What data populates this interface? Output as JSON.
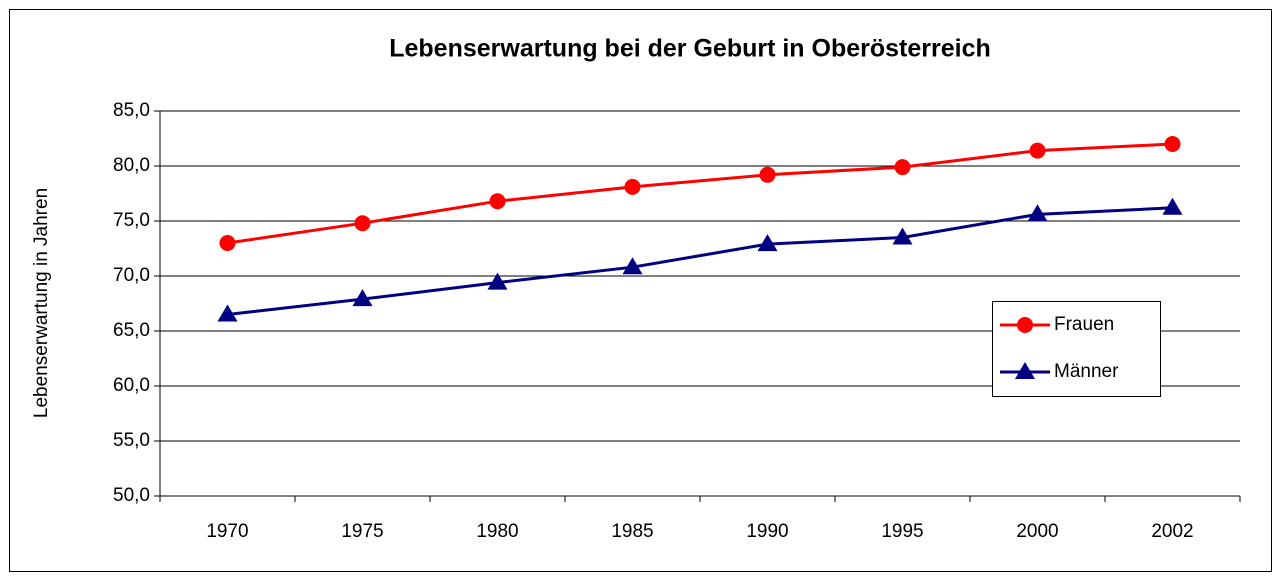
{
  "chart_data": {
    "type": "line",
    "title": "Lebenserwartung bei der Geburt in Oberösterreich",
    "y_label": "Lebenserwartung in Jahren",
    "categories": [
      "1970",
      "1975",
      "1980",
      "1985",
      "1990",
      "1995",
      "2000",
      "2002"
    ],
    "series": [
      {
        "name": "Frauen",
        "color": "#ff0000",
        "marker": "circle",
        "values": [
          73.0,
          74.8,
          76.8,
          78.1,
          79.2,
          79.9,
          81.4,
          82.0
        ]
      },
      {
        "name": "Männer",
        "color": "#000080",
        "marker": "triangle",
        "values": [
          66.5,
          67.9,
          69.4,
          70.8,
          72.9,
          73.5,
          75.6,
          76.2
        ]
      }
    ],
    "ylim": [
      50,
      85
    ],
    "yticks": [
      {
        "value": 50,
        "label": "50,0"
      },
      {
        "value": 55,
        "label": "55,0"
      },
      {
        "value": 60,
        "label": "60,0"
      },
      {
        "value": 65,
        "label": "65,0"
      },
      {
        "value": 70,
        "label": "70,0"
      },
      {
        "value": 75,
        "label": "75,0"
      },
      {
        "value": 80,
        "label": "80,0"
      },
      {
        "value": 85,
        "label": "85,0"
      }
    ],
    "grid": true,
    "legend": "right"
  }
}
